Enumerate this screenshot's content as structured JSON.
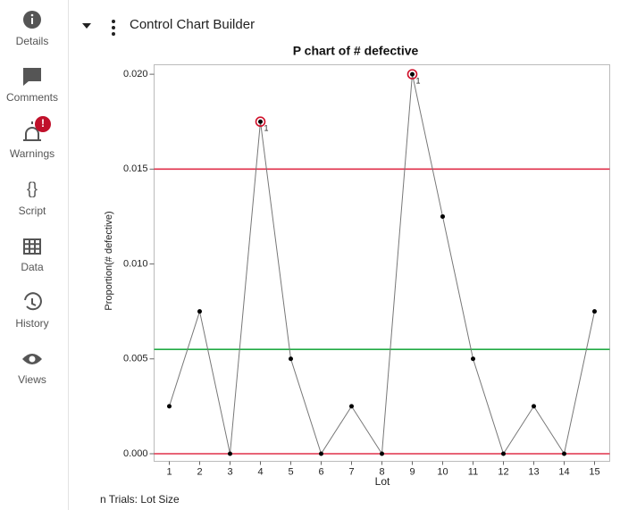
{
  "sidebar": {
    "items": [
      "Details",
      "Comments",
      "Warnings",
      "Script",
      "Data",
      "History",
      "Views"
    ],
    "warning_badge": "!"
  },
  "header": {
    "title": "Control Chart Builder"
  },
  "chart_data": {
    "type": "line",
    "title": "P chart of # defective",
    "x_label": "Lot",
    "y_label": "Proportion(# defective)",
    "x": [
      1,
      2,
      3,
      4,
      5,
      6,
      7,
      8,
      9,
      10,
      11,
      12,
      13,
      14,
      15
    ],
    "values": [
      0.0025,
      0.0075,
      0,
      0.0175,
      0.005,
      0,
      0.0025,
      0,
      0.02,
      0.0125,
      0.005,
      0,
      0.0025,
      0,
      0.0075
    ],
    "color": "#777777",
    "marker_color": "#000000",
    "xlim": [
      0.5,
      15.5
    ],
    "xticks": [
      1,
      2,
      3,
      4,
      5,
      6,
      7,
      8,
      9,
      10,
      11,
      12,
      13,
      14,
      15
    ],
    "ylim": [
      -0.0004,
      0.0205
    ],
    "yticks": [
      {
        "value": 0,
        "label": "0.000"
      },
      {
        "value": 0.005,
        "label": "0.005"
      },
      {
        "value": 0.01,
        "label": "0.010"
      },
      {
        "value": 0.015,
        "label": "0.015"
      },
      {
        "value": 0.02,
        "label": "0.020"
      }
    ],
    "reference_lines": [
      {
        "value": 0.015,
        "color": "#e0304a"
      },
      {
        "value": 0.0055,
        "color": "#22aa44"
      },
      {
        "value": 0,
        "color": "#e0304a"
      }
    ],
    "flags": [
      {
        "index": 3,
        "label": "1"
      },
      {
        "index": 8,
        "label": "1"
      }
    ],
    "flag_color": "#d0102a"
  },
  "footer": {
    "text": "n Trials: Lot Size"
  }
}
